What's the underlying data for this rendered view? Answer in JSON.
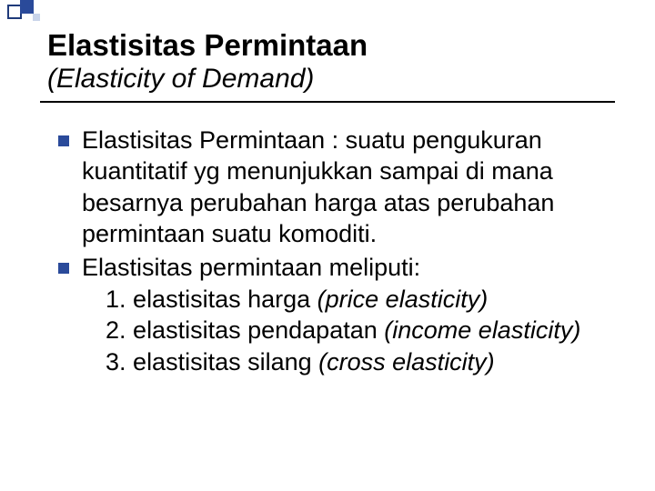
{
  "colors": {
    "accent": "#2a4a9a",
    "accent_light": "#c9d4ea",
    "text": "#000000",
    "background": "#ffffff"
  },
  "typography": {
    "title_fontsize": 33,
    "subtitle_fontsize": 30,
    "body_fontsize": 27,
    "font_family": "Arial"
  },
  "title": "Elastisitas Permintaan",
  "subtitle": "(Elasticity of Demand)",
  "bullets": [
    {
      "text": "Elastisitas Permintaan : suatu pengukuran kuantitatif yg menunjukkan sampai di mana besarnya perubahan harga atas perubahan permintaan suatu komoditi."
    },
    {
      "text": "Elastisitas permintaan meliputi:",
      "sub": [
        {
          "n": "1.",
          "label": "elastisitas harga",
          "paren": "(price elasticity)"
        },
        {
          "n": "2.",
          "label": "elastisitas pendapatan",
          "paren": "(income elasticity)"
        },
        {
          "n": "3.",
          "label": "elastisitas silang",
          "paren": "(cross elasticity)"
        }
      ]
    }
  ]
}
